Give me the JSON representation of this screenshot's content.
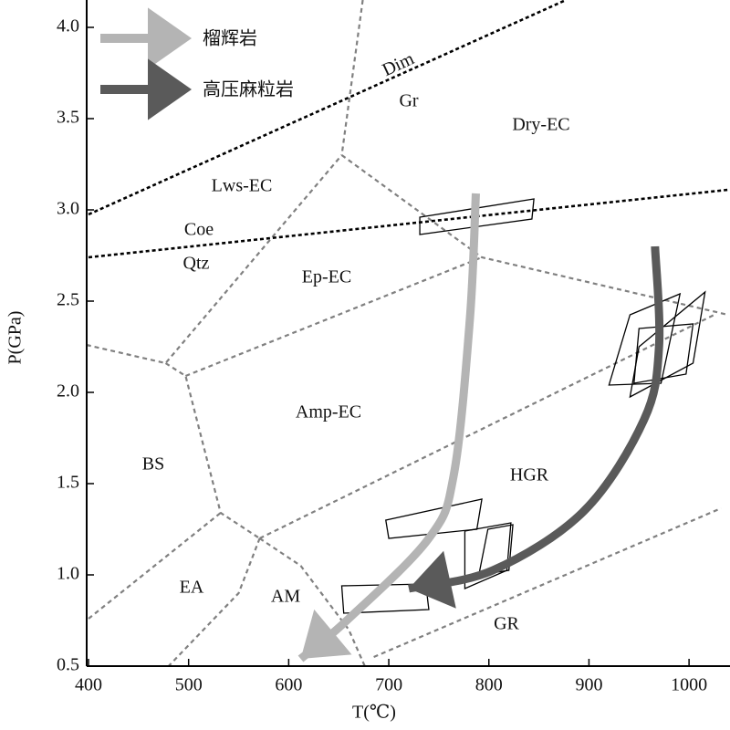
{
  "chart_data": {
    "type": "phase-diagram",
    "x_label": "T(℃)",
    "y_label": "P(GPa)",
    "xlim": [
      400,
      1040
    ],
    "ylim": [
      0.5,
      4.15
    ],
    "xticks": [
      400,
      500,
      600,
      700,
      800,
      900,
      1000
    ],
    "yticks": [
      {
        "value": 4,
        "label": "4.0"
      },
      3.5,
      {
        "value": 3,
        "label": "3.0"
      },
      2.5,
      {
        "value": 2,
        "label": "2.0"
      },
      1.5,
      {
        "value": 1,
        "label": "1.0"
      },
      0.5
    ],
    "annotations": [
      "Dim",
      "Gr",
      "Dry-EC",
      "Lws-EC",
      "Coe",
      "Qtz",
      "Ep-EC",
      "Amp-EC",
      "BS",
      "HGR",
      "EA",
      "AM",
      "GR"
    ],
    "reactions": [
      {
        "color": "#000000",
        "x": [
          400,
          877
        ],
        "y": [
          2.975,
          4.15
        ]
      },
      {
        "color": "#000000",
        "x": [
          400,
          1039
        ],
        "y": [
          2.74,
          3.11
        ]
      }
    ],
    "facies_boundaries": [
      {
        "color": "#808080",
        "x": [
          674,
          653
        ],
        "y": [
          4.15,
          3.3
        ]
      },
      {
        "color": "#808080",
        "x": [
          398,
          477,
          653
        ],
        "y": [
          2.26,
          2.16,
          3.3
        ]
      },
      {
        "color": "#808080",
        "x": [
          477,
          497,
          532,
          571
        ],
        "y": [
          2.16,
          2.09,
          1.34,
          1.2
        ]
      },
      {
        "color": "#808080",
        "x": [
          497,
          793
        ],
        "y": [
          2.09,
          2.74
        ]
      },
      {
        "color": "#808080",
        "x": [
          653,
          793,
          1039
        ],
        "y": [
          3.3,
          2.74,
          2.425
        ]
      },
      {
        "color": "#808080",
        "x": [
          571,
          1027
        ],
        "y": [
          1.2,
          2.43
        ]
      },
      {
        "color": "#808080",
        "x": [
          400,
          532
        ],
        "y": [
          0.76,
          1.34
        ]
      },
      {
        "color": "#808080",
        "x": [
          571,
          550,
          480
        ],
        "y": [
          1.2,
          0.9,
          0.5
        ]
      },
      {
        "color": "#808080",
        "x": [
          571,
          612,
          660,
          676
        ],
        "y": [
          1.2,
          1.05,
          0.7,
          0.5
        ]
      },
      {
        "color": "#808080",
        "x": [
          685,
          1032
        ],
        "y": [
          0.55,
          1.365
        ]
      }
    ],
    "pt_boxes": [
      {
        "x": [
          731,
          845,
          843,
          731
        ],
        "y": [
          2.96,
          3.06,
          2.95,
          2.865
        ]
      },
      {
        "x": [
          697,
          793,
          788,
          700
        ],
        "y": [
          1.3,
          1.415,
          1.25,
          1.2
        ]
      },
      {
        "x": [
          653,
          737,
          740,
          655
        ],
        "y": [
          0.94,
          0.95,
          0.81,
          0.79
        ]
      },
      {
        "x": [
          941,
          991,
          972,
          920
        ],
        "y": [
          2.425,
          2.54,
          2.05,
          2.04
        ]
      },
      {
        "x": [
          950,
          1016,
          1004,
          941
        ],
        "y": [
          2.25,
          2.55,
          2.16,
          1.975
        ]
      },
      {
        "x": [
          950,
          1004,
          997,
          945
        ],
        "y": [
          2.35,
          2.375,
          2.1,
          2.05
        ]
      },
      {
        "x": [
          776,
          822,
          818,
          776
        ],
        "y": [
          1.24,
          1.285,
          1.025,
          0.925
        ]
      },
      {
        "x": [
          799,
          824,
          820,
          790
        ],
        "y": [
          1.25,
          1.275,
          1.025,
          1.0
        ]
      }
    ],
    "series": [
      {
        "name": "榴辉岩",
        "color": "#b4b4b4",
        "x": [
          787,
          781,
          765,
          740,
          658,
          612
        ],
        "y": [
          3.09,
          2.4,
          1.55,
          1.2,
          0.75,
          0.54
        ]
      },
      {
        "name": "高压麻粒岩",
        "color": "#5a5a5a",
        "x": [
          966,
          970,
          955,
          895,
          804,
          720
        ],
        "y": [
          2.8,
          2.25,
          1.85,
          1.35,
          1.025,
          0.925
        ]
      }
    ]
  }
}
